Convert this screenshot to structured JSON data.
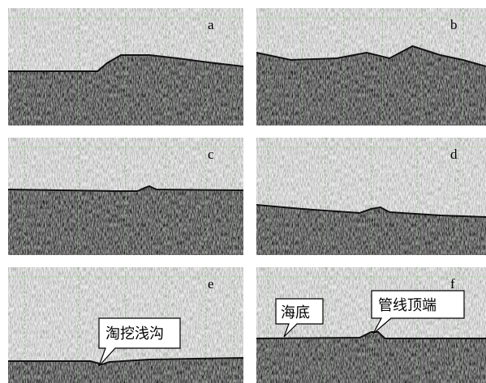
{
  "panels": [
    {
      "label": "a"
    },
    {
      "label": "b"
    },
    {
      "label": "c"
    },
    {
      "label": "d"
    },
    {
      "label": "e"
    },
    {
      "label": "f"
    }
  ],
  "callouts": [
    {
      "text": "淘挖浅沟"
    },
    {
      "text": "海底"
    },
    {
      "text": "管线顶端"
    }
  ]
}
